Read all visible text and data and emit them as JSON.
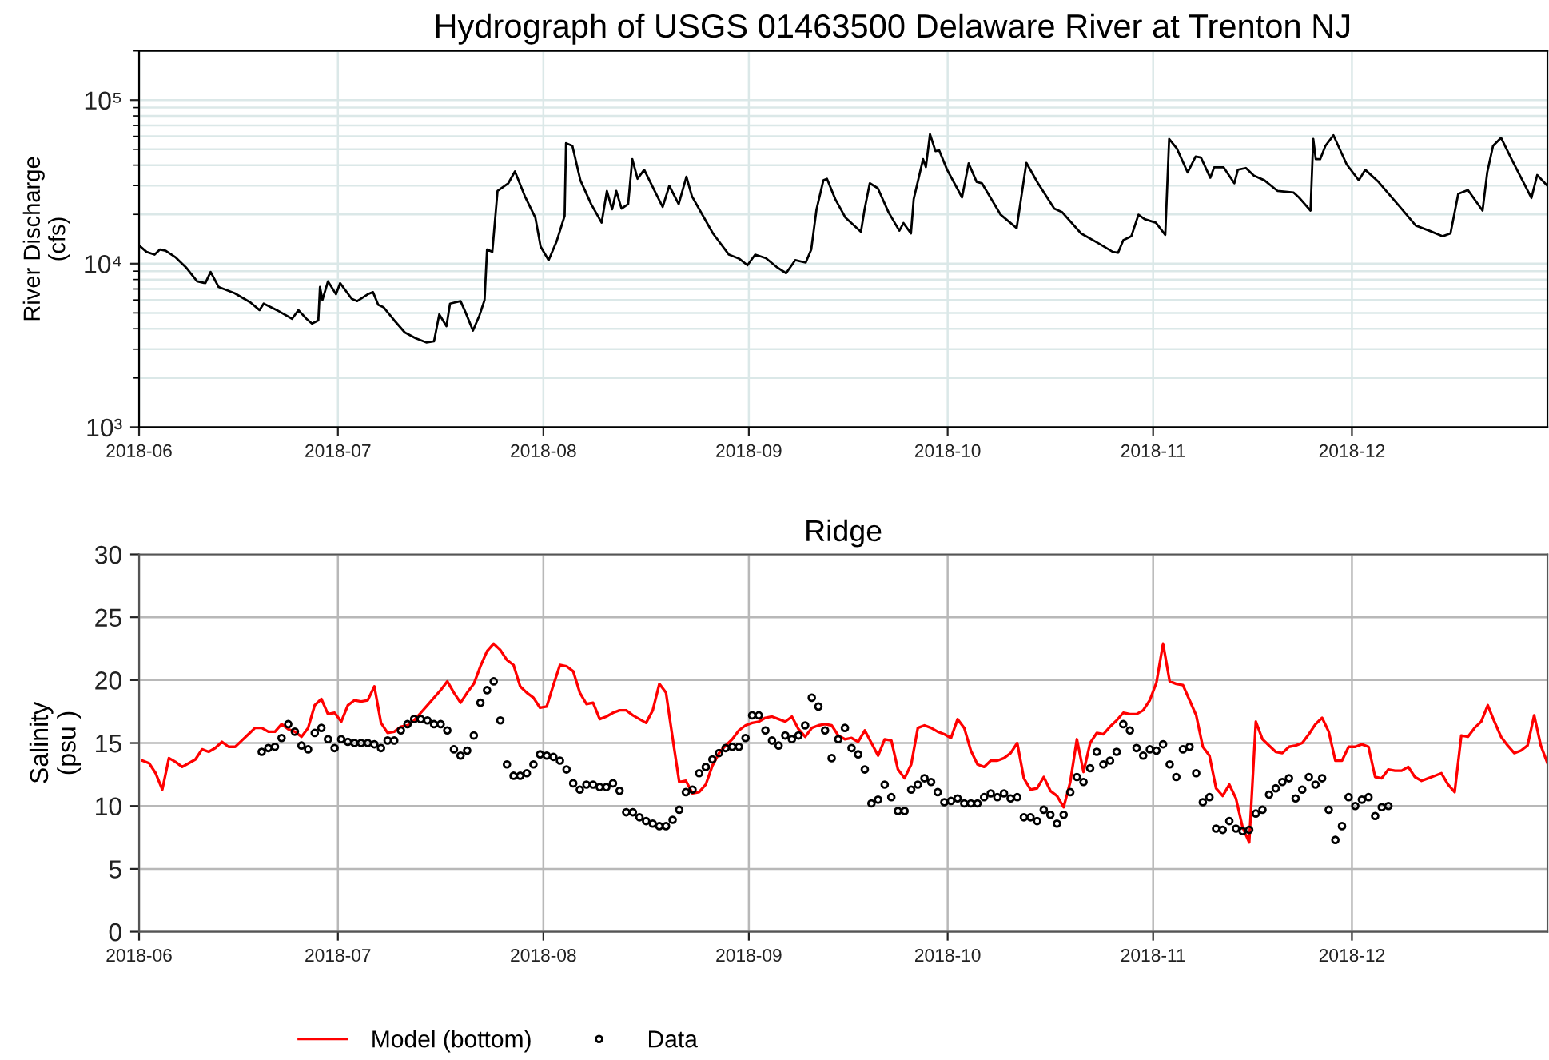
{
  "chart_data": [
    {
      "type": "line",
      "title": "Hydrograph of USGS 01463500 Delaware River at Trenton NJ",
      "ylabel": "River Discharge\n(cfs)",
      "log": "y",
      "grid": true,
      "xlim": [
        "2018-06-01",
        "2018-12-30T12:00"
      ],
      "xticks": [
        {
          "value": "2018-06-01",
          "label": "2018-06"
        },
        {
          "value": "2018-07-01",
          "label": "2018-07"
        },
        {
          "value": "2018-08-01",
          "label": "2018-08"
        },
        {
          "value": "2018-09-01",
          "label": "2018-09"
        },
        {
          "value": "2018-10-01",
          "label": "2018-10"
        },
        {
          "value": "2018-11-01",
          "label": "2018-11"
        },
        {
          "value": "2018-12-01",
          "label": "2018-12"
        }
      ],
      "ylim": [
        1000,
        200000
      ],
      "yticks": [
        {
          "value": 1000,
          "label": "10³"
        },
        {
          "value": 10000,
          "label": "10⁴"
        },
        {
          "value": 100000,
          "label": "10⁵"
        }
      ],
      "series": [
        {
          "color": "#000000",
          "x": [
            "2018-06-01T00:00",
            "2018-06-02T03:00",
            "2018-06-03T08:00",
            "2018-06-04T03:00",
            "2018-06-05T00:00",
            "2018-06-06T13:00",
            "2018-06-08T04:00",
            "2018-06-09T18:00",
            "2018-06-11T00:00",
            "2018-06-11T19:00",
            "2018-06-13T00:00",
            "2018-06-15T10:00",
            "2018-06-17T19:00",
            "2018-06-19T04:00",
            "2018-06-19T19:00",
            "2018-06-21T19:00",
            "2018-06-24T02:00",
            "2018-06-25T01:00",
            "2018-06-26T06:00",
            "2018-06-27T02:00",
            "2018-06-28T01:00",
            "2018-06-28T07:00",
            "2018-06-28T16:00",
            "2018-06-29T12:00",
            "2018-06-30T17:00",
            "2018-07-01T08:00",
            "2018-07-03T02:00",
            "2018-07-03T22:00",
            "2018-07-05T12:00",
            "2018-07-06T07:00",
            "2018-07-07T02:00",
            "2018-07-07T22:00",
            "2018-07-09T12:00",
            "2018-07-11T02:00",
            "2018-07-12T17:00",
            "2018-07-14T08:00",
            "2018-07-15T12:00",
            "2018-07-16T07:00",
            "2018-07-17T09:00",
            "2018-07-17T22:00",
            "2018-07-19T12:00",
            "2018-07-20T07:00",
            "2018-07-21T09:00",
            "2018-07-22T08:00",
            "2018-07-23T03:00",
            "2018-07-23T12:00",
            "2018-07-24T07:00",
            "2018-07-25T02:00",
            "2018-07-26T17:00",
            "2018-07-27T17:00",
            "2018-07-29T05:00",
            "2018-07-30T19:00",
            "2018-07-31T14:00",
            "2018-08-01T19:00",
            "2018-08-03T00:00",
            "2018-08-04T05:00",
            "2018-08-04T10:00",
            "2018-08-05T09:00",
            "2018-08-06T14:00",
            "2018-08-08T05:00",
            "2018-08-09T19:00",
            "2018-08-10T14:00",
            "2018-08-11T09:00",
            "2018-08-12T00:00",
            "2018-08-12T19:00",
            "2018-08-13T19:00",
            "2018-08-14T10:00",
            "2018-08-15T05:00",
            "2018-08-16T05:00",
            "2018-08-17T19:00",
            "2018-08-19T00:00",
            "2018-08-20T00:00",
            "2018-08-21T10:00",
            "2018-08-22T14:00",
            "2018-08-23T10:00",
            "2018-08-26T14:00",
            "2018-08-29T00:00",
            "2018-08-30T14:00",
            "2018-08-31T19:00",
            "2018-09-01T23:00",
            "2018-09-03T14:00",
            "2018-09-05T04:00",
            "2018-09-06T15:00",
            "2018-09-08T00:00",
            "2018-09-09T14:00",
            "2018-09-10T10:00",
            "2018-09-11T05:00",
            "2018-09-12T06:00",
            "2018-09-12T19:00",
            "2018-09-14T01:00",
            "2018-09-15T14:00",
            "2018-09-17T22:00",
            "2018-09-18T11:00",
            "2018-09-19T06:00",
            "2018-09-20T11:00",
            "2018-09-22T02:00",
            "2018-09-23T17:00",
            "2018-09-24T08:00",
            "2018-09-25T11:00",
            "2018-09-25T21:00",
            "2018-09-27T07:00",
            "2018-09-27T17:00",
            "2018-09-28T08:00",
            "2018-09-29T04:00",
            "2018-09-29T17:00",
            "2018-09-30T22:00",
            "2018-10-03T04:00",
            "2018-10-04T04:00",
            "2018-10-05T09:00",
            "2018-10-06T04:00",
            "2018-10-09T00:00",
            "2018-10-11T10:00",
            "2018-10-12T21:00",
            "2018-10-14T15:00",
            "2018-10-17T02:00",
            "2018-10-18T07:00",
            "2018-10-21T03:00",
            "2018-10-23T22:00",
            "2018-10-25T22:00",
            "2018-10-26T17:00",
            "2018-10-27T12:00",
            "2018-10-28T17:00",
            "2018-10-29T19:00",
            "2018-10-30T17:00",
            "2018-11-01T10:00",
            "2018-11-02T20:00",
            "2018-11-03T10:00",
            "2018-11-04T14:00",
            "2018-11-06T05:00",
            "2018-11-07T10:00",
            "2018-11-08T05:00",
            "2018-11-09T15:00",
            "2018-11-10T05:00",
            "2018-11-11T15:00",
            "2018-11-13T06:00",
            "2018-11-13T19:00",
            "2018-11-15T00:00",
            "2018-11-16T05:00",
            "2018-11-17T19:00",
            "2018-11-19T19:00",
            "2018-11-22T05:00",
            "2018-11-23T00:00",
            "2018-11-24T18:00",
            "2018-11-25T04:00",
            "2018-11-25T13:00",
            "2018-11-26T05:00",
            "2018-11-27T00:00",
            "2018-11-28T05:00",
            "2018-11-30T05:00",
            "2018-12-02T01:00",
            "2018-12-03T00:00",
            "2018-12-05T00:00",
            "2018-12-08T06:00",
            "2018-12-10T15:00",
            "2018-12-12T16:00",
            "2018-12-14T16:00",
            "2018-12-15T21:00",
            "2018-12-17T01:00",
            "2018-12-18T12:00",
            "2018-12-20T17:00",
            "2018-12-21T10:00",
            "2018-12-22T07:00",
            "2018-12-23T12:00",
            "2018-12-25T02:00",
            "2018-12-28T02:00",
            "2018-12-28T23:00",
            "2018-12-30T12:00"
          ],
          "values": [
            12900,
            11800,
            11350,
            12200,
            12000,
            10900,
            9400,
            7800,
            7600,
            8900,
            7200,
            6600,
            5800,
            5200,
            5700,
            5200,
            4600,
            5200,
            4600,
            4300,
            4500,
            7200,
            6000,
            7800,
            6500,
            7600,
            6100,
            5900,
            6500,
            6700,
            5600,
            5400,
            4500,
            3800,
            3500,
            3300,
            3350,
            4900,
            4150,
            5700,
            5900,
            5000,
            3900,
            4800,
            6000,
            12200,
            11800,
            27800,
            31000,
            36600,
            25800,
            19100,
            12700,
            10500,
            13700,
            19600,
            54500,
            52500,
            32300,
            23100,
            17800,
            27800,
            21500,
            27800,
            21700,
            23100,
            43500,
            33000,
            37500,
            27800,
            22200,
            29900,
            23100,
            34000,
            25800,
            15300,
            11350,
            10700,
            9780,
            11350,
            10800,
            9560,
            8740,
            10500,
            10150,
            12200,
            21400,
            32300,
            33000,
            24800,
            19100,
            15650,
            21400,
            31000,
            28900,
            20600,
            15900,
            17700,
            15300,
            24800,
            43500,
            38900,
            61800,
            48700,
            49300,
            37500,
            25400,
            41000,
            31600,
            31000,
            19900,
            16500,
            41300,
            31000,
            21700,
            20600,
            15300,
            13200,
            11800,
            11650,
            13900,
            14700,
            19900,
            18700,
            17800,
            15000,
            57800,
            50500,
            36100,
            45200,
            44500,
            33500,
            38800,
            38800,
            31000,
            37500,
            38400,
            34500,
            32300,
            27800,
            27200,
            25400,
            21100,
            57800,
            43500,
            43500,
            52500,
            60900,
            40400,
            32300,
            37500,
            31600,
            22200,
            17100,
            15900,
            14700,
            15300,
            26700,
            28200,
            21100,
            36100,
            52500,
            58800,
            43500,
            25200,
            34800,
            29900
          ]
        }
      ]
    },
    {
      "type": "line",
      "title": "Ridge",
      "ylabel": "Salinity\n(psu )",
      "grid": true,
      "legend": "bottom",
      "xlim": [
        "2018-06-01",
        "2018-12-30T12:00"
      ],
      "xticks": [
        {
          "value": "2018-06-01",
          "label": "2018-06"
        },
        {
          "value": "2018-07-01",
          "label": "2018-07"
        },
        {
          "value": "2018-08-01",
          "label": "2018-08"
        },
        {
          "value": "2018-09-01",
          "label": "2018-09"
        },
        {
          "value": "2018-10-01",
          "label": "2018-10"
        },
        {
          "value": "2018-11-01",
          "label": "2018-11"
        },
        {
          "value": "2018-12-01",
          "label": "2018-12"
        }
      ],
      "ylim": [
        0,
        30
      ],
      "yticks": [
        0,
        5,
        10,
        15,
        20,
        25,
        30
      ],
      "series": [
        {
          "name": "Model (bottom)",
          "color": "#ff0000",
          "x": [
            "2018-06-01T12:00",
            "2018-06-02T12:00",
            "2018-06-03T12:00",
            "2018-06-04T12:00",
            "2018-06-05T12:00",
            "2018-06-06T12:00",
            "2018-06-07T12:00",
            "2018-06-08T12:00",
            "2018-06-09T12:00",
            "2018-06-10T12:00",
            "2018-06-11T12:00",
            "2018-06-12T12:00",
            "2018-06-13T12:00",
            "2018-06-14T12:00",
            "2018-06-15T12:00",
            "2018-06-16T12:00",
            "2018-06-17T12:00",
            "2018-06-18T12:00",
            "2018-06-19T12:00",
            "2018-06-20T12:00",
            "2018-06-21T12:00",
            "2018-06-22T12:00",
            "2018-06-23T12:00",
            "2018-06-24T12:00",
            "2018-06-25T12:00",
            "2018-06-26T12:00",
            "2018-06-27T12:00",
            "2018-06-28T12:00",
            "2018-06-29T12:00",
            "2018-06-30T12:00",
            "2018-07-01T12:00",
            "2018-07-02T12:00",
            "2018-07-03T12:00",
            "2018-07-04T12:00",
            "2018-07-05T12:00",
            "2018-07-06T12:00",
            "2018-07-07T12:00",
            "2018-07-08T12:00",
            "2018-07-09T12:00",
            "2018-07-10T12:00",
            "2018-07-11T12:00",
            "2018-07-12T12:00",
            "2018-07-13T12:00",
            "2018-07-14T12:00",
            "2018-07-15T12:00",
            "2018-07-16T12:00",
            "2018-07-17T12:00",
            "2018-07-18T12:00",
            "2018-07-19T12:00",
            "2018-07-20T12:00",
            "2018-07-21T12:00",
            "2018-07-22T12:00",
            "2018-07-23T12:00",
            "2018-07-24T12:00",
            "2018-07-25T12:00",
            "2018-07-26T12:00",
            "2018-07-27T12:00",
            "2018-07-28T12:00",
            "2018-07-29T12:00",
            "2018-07-30T12:00",
            "2018-07-31T12:00",
            "2018-08-01T12:00",
            "2018-08-02T12:00",
            "2018-08-03T12:00",
            "2018-08-04T12:00",
            "2018-08-05T12:00",
            "2018-08-06T12:00",
            "2018-08-07T12:00",
            "2018-08-08T12:00",
            "2018-08-09T12:00",
            "2018-08-10T12:00",
            "2018-08-11T12:00",
            "2018-08-12T12:00",
            "2018-08-13T12:00",
            "2018-08-14T12:00",
            "2018-08-15T12:00",
            "2018-08-16T12:00",
            "2018-08-17T12:00",
            "2018-08-18T12:00",
            "2018-08-19T12:00",
            "2018-08-20T12:00",
            "2018-08-21T12:00",
            "2018-08-22T12:00",
            "2018-08-23T12:00",
            "2018-08-24T12:00",
            "2018-08-25T12:00",
            "2018-08-26T12:00",
            "2018-08-27T12:00",
            "2018-08-28T12:00",
            "2018-08-29T12:00",
            "2018-08-30T12:00",
            "2018-08-31T12:00",
            "2018-09-01T12:00",
            "2018-09-02T12:00",
            "2018-09-03T12:00",
            "2018-09-04T12:00",
            "2018-09-05T12:00",
            "2018-09-06T12:00",
            "2018-09-07T12:00",
            "2018-09-08T12:00",
            "2018-09-09T12:00",
            "2018-09-10T12:00",
            "2018-09-11T12:00",
            "2018-09-12T12:00",
            "2018-09-13T12:00",
            "2018-09-14T12:00",
            "2018-09-15T12:00",
            "2018-09-16T12:00",
            "2018-09-17T12:00",
            "2018-09-18T12:00",
            "2018-09-19T12:00",
            "2018-09-20T12:00",
            "2018-09-21T12:00",
            "2018-09-22T12:00",
            "2018-09-23T12:00",
            "2018-09-24T12:00",
            "2018-09-25T12:00",
            "2018-09-26T12:00",
            "2018-09-27T12:00",
            "2018-09-28T12:00",
            "2018-09-29T12:00",
            "2018-09-30T12:00",
            "2018-10-01T12:00",
            "2018-10-02T12:00",
            "2018-10-03T12:00",
            "2018-10-04T12:00",
            "2018-10-05T12:00",
            "2018-10-06T12:00",
            "2018-10-07T12:00",
            "2018-10-08T12:00",
            "2018-10-09T12:00",
            "2018-10-10T12:00",
            "2018-10-11T12:00",
            "2018-10-12T12:00",
            "2018-10-13T12:00",
            "2018-10-14T12:00",
            "2018-10-15T12:00",
            "2018-10-16T12:00",
            "2018-10-17T12:00",
            "2018-10-18T12:00",
            "2018-10-19T12:00",
            "2018-10-20T12:00",
            "2018-10-21T12:00",
            "2018-10-22T12:00",
            "2018-10-23T12:00",
            "2018-10-24T12:00",
            "2018-10-25T12:00",
            "2018-10-26T12:00",
            "2018-10-27T12:00",
            "2018-10-28T12:00",
            "2018-10-29T12:00",
            "2018-10-30T12:00",
            "2018-10-31T12:00",
            "2018-11-01T12:00",
            "2018-11-02T12:00",
            "2018-11-03T12:00",
            "2018-11-04T12:00",
            "2018-11-05T12:00",
            "2018-11-06T12:00",
            "2018-11-07T12:00",
            "2018-11-08T12:00",
            "2018-11-09T12:00",
            "2018-11-10T12:00",
            "2018-11-11T12:00",
            "2018-11-12T12:00",
            "2018-11-13T12:00",
            "2018-11-14T12:00",
            "2018-11-15T12:00",
            "2018-11-16T12:00",
            "2018-11-17T12:00",
            "2018-11-18T12:00",
            "2018-11-19T12:00",
            "2018-11-20T12:00",
            "2018-11-21T12:00",
            "2018-11-22T12:00",
            "2018-11-23T12:00",
            "2018-11-24T12:00",
            "2018-11-25T12:00",
            "2018-11-26T12:00",
            "2018-11-27T12:00",
            "2018-11-28T12:00",
            "2018-11-29T12:00",
            "2018-11-30T12:00",
            "2018-12-01T12:00",
            "2018-12-02T12:00",
            "2018-12-03T12:00",
            "2018-12-04T12:00",
            "2018-12-05T12:00",
            "2018-12-06T12:00",
            "2018-12-07T12:00",
            "2018-12-08T12:00",
            "2018-12-09T12:00",
            "2018-12-10T12:00",
            "2018-12-11T12:00",
            "2018-12-12T12:00",
            "2018-12-13T12:00",
            "2018-12-14T12:00",
            "2018-12-15T12:00",
            "2018-12-16T12:00",
            "2018-12-17T12:00",
            "2018-12-18T12:00",
            "2018-12-19T12:00",
            "2018-12-20T12:00",
            "2018-12-21T12:00",
            "2018-12-22T12:00",
            "2018-12-23T12:00",
            "2018-12-24T12:00",
            "2018-12-25T12:00",
            "2018-12-26T12:00",
            "2018-12-27T12:00",
            "2018-12-28T12:00",
            "2018-12-29T12:00",
            "2018-12-30T12:00"
          ],
          "values": [
            13.6,
            13.4,
            12.6,
            11.3,
            13.8,
            13.5,
            13.1,
            13.4,
            13.7,
            14.5,
            14.3,
            14.6,
            15.1,
            14.7,
            14.7,
            15.2,
            15.7,
            16.2,
            16.2,
            15.9,
            15.9,
            16.5,
            16.1,
            15.9,
            15.5,
            16.2,
            18.0,
            18.5,
            17.3,
            17.4,
            16.7,
            18.0,
            18.4,
            18.3,
            18.4,
            19.5,
            16.6,
            15.8,
            15.9,
            16.3,
            16.4,
            16.8,
            17.4,
            18.0,
            18.6,
            19.2,
            19.9,
            19.0,
            18.2,
            19.0,
            19.7,
            21.1,
            22.3,
            22.9,
            22.4,
            21.6,
            21.2,
            19.5,
            19.0,
            18.6,
            17.8,
            17.9,
            19.6,
            21.2,
            21.1,
            20.7,
            19.0,
            18.1,
            18.2,
            16.9,
            17.1,
            17.4,
            17.6,
            17.6,
            17.2,
            16.9,
            16.6,
            17.6,
            19.7,
            19.0,
            15.4,
            11.9,
            12.0,
            11.0,
            11.1,
            11.7,
            13.2,
            14.2,
            14.8,
            15.3,
            16.0,
            16.4,
            16.6,
            16.7,
            17.0,
            17.1,
            16.9,
            16.7,
            17.1,
            16.1,
            15.5,
            16.2,
            16.4,
            16.5,
            16.4,
            15.6,
            15.3,
            15.4,
            15.1,
            16.0,
            15.0,
            14.0,
            15.3,
            15.2,
            12.9,
            12.2,
            13.3,
            16.2,
            16.4,
            16.2,
            15.9,
            15.7,
            15.4,
            16.9,
            16.2,
            14.4,
            13.3,
            13.1,
            13.6,
            13.6,
            13.8,
            14.2,
            15.0,
            12.2,
            11.3,
            11.4,
            12.3,
            11.2,
            10.8,
            9.9,
            11.9,
            15.3,
            12.7,
            15.0,
            15.8,
            15.7,
            16.3,
            16.8,
            17.4,
            17.3,
            17.3,
            17.6,
            18.4,
            19.8,
            22.9,
            19.9,
            19.7,
            19.6,
            18.4,
            17.2,
            14.7,
            14.0,
            11.4,
            10.8,
            11.7,
            10.6,
            8.3,
            7.1,
            16.7,
            15.3,
            14.8,
            14.3,
            14.2,
            14.7,
            14.8,
            15.0,
            15.7,
            16.5,
            17.0,
            15.9,
            13.6,
            13.6,
            14.7,
            14.7,
            14.9,
            14.7,
            12.3,
            12.2,
            12.9,
            12.8,
            12.8,
            13.1,
            12.3,
            12.0,
            12.2,
            12.4,
            12.6,
            11.7,
            11.1,
            15.6,
            15.5,
            16.2,
            16.7,
            18.0,
            16.7,
            15.5,
            14.8,
            14.2,
            14.4,
            14.8,
            17.2,
            14.8,
            13.4
          ]
        },
        {
          "name": "Data",
          "type": "scatter",
          "marker": "circle",
          "color": "#000000",
          "x": [
            "2018-06-19T12:00",
            "2018-06-20T12:00",
            "2018-06-21T12:00",
            "2018-06-22T12:00",
            "2018-06-23T12:00",
            "2018-06-24T12:00",
            "2018-06-25T12:00",
            "2018-06-26T12:00",
            "2018-06-27T12:00",
            "2018-06-28T12:00",
            "2018-06-29T12:00",
            "2018-06-30T12:00",
            "2018-07-01T12:00",
            "2018-07-02T12:00",
            "2018-07-03T12:00",
            "2018-07-04T12:00",
            "2018-07-05T12:00",
            "2018-07-06T12:00",
            "2018-07-07T12:00",
            "2018-07-08T12:00",
            "2018-07-09T12:00",
            "2018-07-10T12:00",
            "2018-07-11T12:00",
            "2018-07-12T12:00",
            "2018-07-13T12:00",
            "2018-07-14T12:00",
            "2018-07-15T12:00",
            "2018-07-16T12:00",
            "2018-07-17T12:00",
            "2018-07-18T12:00",
            "2018-07-19T12:00",
            "2018-07-20T12:00",
            "2018-07-21T12:00",
            "2018-07-22T12:00",
            "2018-07-23T12:00",
            "2018-07-24T12:00",
            "2018-07-25T12:00",
            "2018-07-26T12:00",
            "2018-07-27T12:00",
            "2018-07-28T12:00",
            "2018-07-29T12:00",
            "2018-07-30T12:00",
            "2018-07-31T12:00",
            "2018-08-01T12:00",
            "2018-08-02T12:00",
            "2018-08-03T12:00",
            "2018-08-04T12:00",
            "2018-08-05T12:00",
            "2018-08-06T12:00",
            "2018-08-07T12:00",
            "2018-08-08T12:00",
            "2018-08-09T12:00",
            "2018-08-10T12:00",
            "2018-08-11T12:00",
            "2018-08-12T12:00",
            "2018-08-13T12:00",
            "2018-08-14T12:00",
            "2018-08-15T12:00",
            "2018-08-16T12:00",
            "2018-08-17T12:00",
            "2018-08-18T12:00",
            "2018-08-19T12:00",
            "2018-08-20T12:00",
            "2018-08-21T12:00",
            "2018-08-22T12:00",
            "2018-08-23T12:00",
            "2018-08-24T12:00",
            "2018-08-25T12:00",
            "2018-08-26T12:00",
            "2018-08-27T12:00",
            "2018-08-28T12:00",
            "2018-08-29T12:00",
            "2018-08-30T12:00",
            "2018-08-31T12:00",
            "2018-09-01T12:00",
            "2018-09-02T12:00",
            "2018-09-03T12:00",
            "2018-09-04T12:00",
            "2018-09-05T12:00",
            "2018-09-06T12:00",
            "2018-09-07T12:00",
            "2018-09-08T12:00",
            "2018-09-09T12:00",
            "2018-09-10T12:00",
            "2018-09-11T12:00",
            "2018-09-12T12:00",
            "2018-09-13T12:00",
            "2018-09-14T12:00",
            "2018-09-15T12:00",
            "2018-09-16T12:00",
            "2018-09-17T12:00",
            "2018-09-18T12:00",
            "2018-09-19T12:00",
            "2018-09-20T12:00",
            "2018-09-21T12:00",
            "2018-09-22T12:00",
            "2018-09-23T12:00",
            "2018-09-24T12:00",
            "2018-09-25T12:00",
            "2018-09-26T12:00",
            "2018-09-27T12:00",
            "2018-09-28T12:00",
            "2018-09-29T12:00",
            "2018-09-30T12:00",
            "2018-10-01T12:00",
            "2018-10-02T12:00",
            "2018-10-03T12:00",
            "2018-10-04T12:00",
            "2018-10-05T12:00",
            "2018-10-06T12:00",
            "2018-10-07T12:00",
            "2018-10-08T12:00",
            "2018-10-09T12:00",
            "2018-10-10T12:00",
            "2018-10-11T12:00",
            "2018-10-12T12:00",
            "2018-10-13T12:00",
            "2018-10-14T12:00",
            "2018-10-15T12:00",
            "2018-10-16T12:00",
            "2018-10-17T12:00",
            "2018-10-18T12:00",
            "2018-10-19T12:00",
            "2018-10-20T12:00",
            "2018-10-21T12:00",
            "2018-10-22T12:00",
            "2018-10-23T12:00",
            "2018-10-24T12:00",
            "2018-10-25T12:00",
            "2018-10-26T12:00",
            "2018-10-27T12:00",
            "2018-10-28T12:00",
            "2018-10-29T12:00",
            "2018-10-30T12:00",
            "2018-10-31T12:00",
            "2018-11-01T12:00",
            "2018-11-02T12:00",
            "2018-11-03T12:00",
            "2018-11-04T12:00",
            "2018-11-05T12:00",
            "2018-11-06T12:00",
            "2018-11-07T12:00",
            "2018-11-08T12:00",
            "2018-11-09T12:00",
            "2018-11-10T12:00",
            "2018-11-11T12:00",
            "2018-11-12T12:00",
            "2018-11-13T12:00",
            "2018-11-14T12:00",
            "2018-11-15T12:00",
            "2018-11-16T12:00",
            "2018-11-17T12:00",
            "2018-11-18T12:00",
            "2018-11-19T12:00",
            "2018-11-20T12:00",
            "2018-11-21T12:00",
            "2018-11-22T12:00",
            "2018-11-23T12:00",
            "2018-11-24T12:00",
            "2018-11-25T12:00",
            "2018-11-26T12:00",
            "2018-11-27T12:00",
            "2018-11-28T12:00",
            "2018-11-29T12:00",
            "2018-11-30T12:00",
            "2018-12-01T12:00",
            "2018-12-02T12:00",
            "2018-12-03T12:00",
            "2018-12-04T12:00",
            "2018-12-05T12:00",
            "2018-12-06T12:00"
          ],
          "values": [
            14.3,
            14.6,
            14.7,
            15.4,
            16.5,
            15.9,
            14.8,
            14.5,
            15.8,
            16.2,
            15.3,
            14.6,
            15.3,
            15.1,
            15.0,
            15.0,
            15.0,
            14.9,
            14.6,
            15.2,
            15.2,
            16.0,
            16.5,
            16.9,
            16.9,
            16.8,
            16.5,
            16.5,
            16.0,
            14.5,
            14.0,
            14.4,
            15.6,
            18.2,
            19.2,
            19.9,
            16.8,
            13.3,
            12.4,
            12.4,
            12.6,
            13.3,
            14.1,
            14.0,
            13.9,
            13.6,
            12.9,
            11.8,
            11.3,
            11.7,
            11.7,
            11.5,
            11.5,
            11.8,
            11.2,
            9.5,
            9.5,
            9.1,
            8.8,
            8.6,
            8.4,
            8.4,
            8.9,
            9.7,
            11.1,
            11.3,
            12.6,
            13.1,
            13.7,
            14.2,
            14.6,
            14.7,
            14.7,
            15.4,
            17.2,
            17.2,
            16.0,
            15.2,
            14.8,
            15.6,
            15.3,
            15.6,
            16.4,
            18.6,
            17.9,
            16.0,
            13.8,
            15.3,
            16.2,
            14.6,
            14.1,
            12.9,
            10.2,
            10.5,
            11.7,
            10.7,
            9.6,
            9.6,
            11.3,
            11.7,
            12.2,
            11.9,
            11.1,
            10.3,
            10.4,
            10.6,
            10.2,
            10.2,
            10.2,
            10.7,
            11.0,
            10.7,
            11.0,
            10.6,
            10.7,
            9.1,
            9.1,
            8.8,
            9.7,
            9.3,
            8.6,
            9.3,
            11.1,
            12.3,
            11.9,
            13.0,
            14.3,
            13.3,
            13.6,
            14.3,
            16.5,
            16.0,
            14.6,
            14.0,
            14.5,
            14.4,
            14.9,
            13.3,
            12.3,
            14.5,
            14.7,
            12.6,
            10.3,
            10.7,
            8.2,
            8.1,
            8.8,
            8.2,
            8.0,
            8.1,
            9.4,
            9.7,
            10.9,
            11.4,
            11.9,
            12.2,
            10.6,
            11.3,
            12.3,
            11.7,
            12.2,
            9.7,
            7.3,
            8.4,
            10.7,
            10.0,
            10.5,
            10.7,
            9.2,
            9.9,
            10.0
          ]
        }
      ]
    }
  ]
}
